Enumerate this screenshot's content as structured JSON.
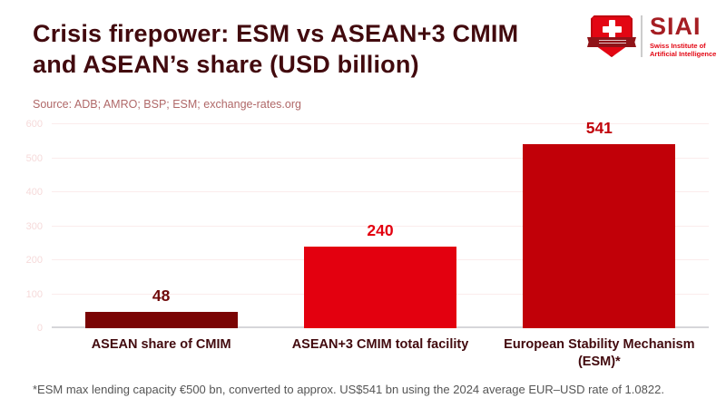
{
  "header": {
    "title_line1": "Crisis firepower: ESM vs ASEAN+3 CMIM",
    "title_line2": "and ASEAN’s share (USD billion)",
    "source": "Source: ADB; AMRO; BSP; ESM; exchange-rates.org"
  },
  "logo": {
    "acronym": "SIAI",
    "subtitle_line1": "Swiss Institute of",
    "subtitle_line2": "Artificial Intelligence"
  },
  "chart_data": {
    "type": "bar",
    "title": "Crisis firepower: ESM vs ASEAN+3 CMIM and ASEAN’s share (USD billion)",
    "categories": [
      "ASEAN share of CMIM",
      "ASEAN+3 CMIM total facility",
      "European Stability Mechanism (ESM)*"
    ],
    "category_display": [
      "ASEAN share of CMIM",
      "ASEAN+3 CMIM total facility",
      "European Stability Mechanism\n(ESM)*"
    ],
    "values": [
      48,
      240,
      541
    ],
    "bar_colors": [
      "#7a0404",
      "#e3000f",
      "#c10008"
    ],
    "value_label_colors": [
      "#6f0a0a",
      "#e3000f",
      "#c10008"
    ],
    "xlabel": "",
    "ylabel": "",
    "ylim": [
      0,
      600
    ],
    "yticks": [
      0,
      100,
      200,
      300,
      400,
      500,
      600
    ],
    "grid": true,
    "legend": false
  },
  "footnote": "*ESM max lending capacity €500 bn, converted to approx. US$541 bn using the 2024 average EUR–USD rate of 1.0822.",
  "colors": {
    "title": "#420a0e",
    "source_text": "#b06868",
    "tick_label": "#f6dada",
    "gridline": "#fbecec",
    "zero_axis": "#d6d6da",
    "category_label": "#420a0e",
    "footnote_text": "#555555",
    "logo_red": "#e30613",
    "logo_dark_red": "#a51e23",
    "ribbon_dark": "#8f1318"
  }
}
